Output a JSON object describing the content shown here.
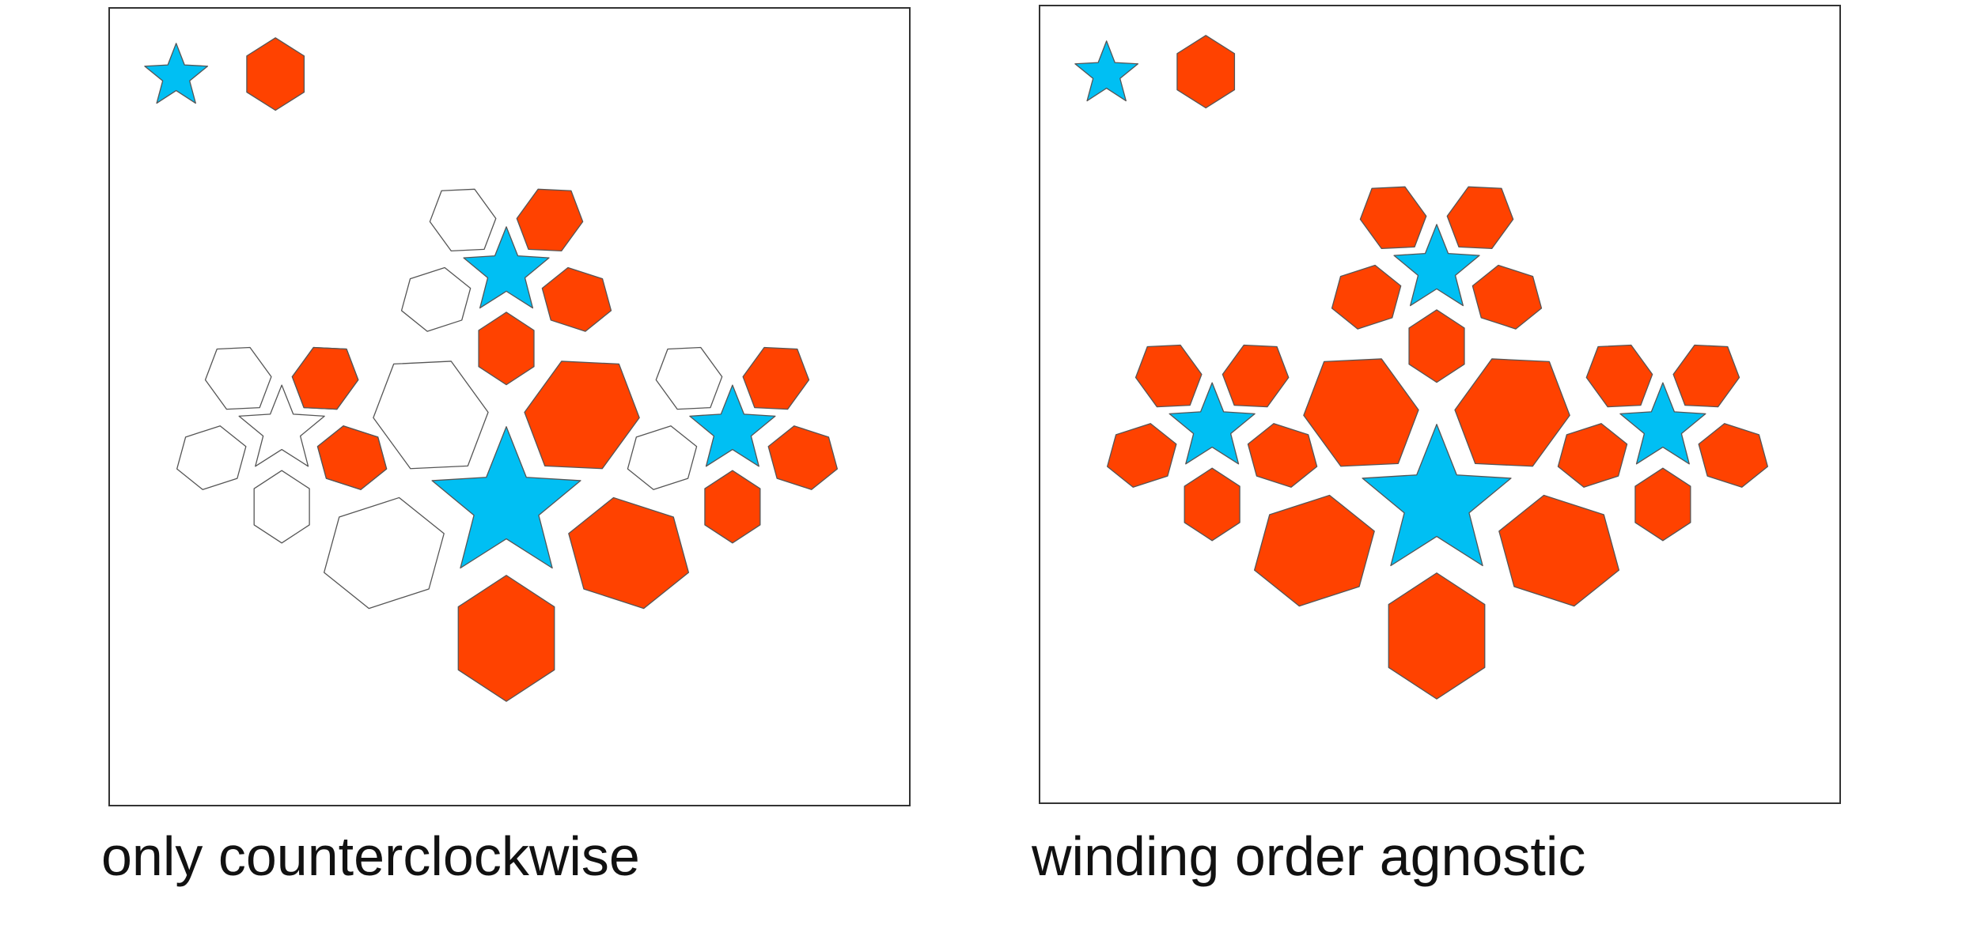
{
  "colors": {
    "star_fill": "#00bff3",
    "hexagon_fill": "#ff4200",
    "hollow_fill": "#ffffff",
    "outline": "#555555"
  },
  "legend": [
    {
      "shape": "star",
      "icon": "star-icon"
    },
    {
      "shape": "hexagon",
      "icon": "hexagon-icon"
    }
  ],
  "panels": [
    {
      "id": "left",
      "caption": "only counterclockwise",
      "flower_fill": [
        false,
        true,
        true
      ]
    },
    {
      "id": "right",
      "caption": "winding order agnostic",
      "flower_fill": [
        true,
        true,
        true
      ]
    }
  ],
  "clusters": [
    {
      "name": "flower-left",
      "petals": [
        "filled",
        "hollow-left",
        "hollow-left",
        "filled",
        "filled"
      ]
    },
    {
      "name": "flower-top",
      "petals": [
        "filled",
        "hollow-left",
        "hollow-left",
        "filled",
        "filled"
      ]
    },
    {
      "name": "flower-center",
      "petals": [
        "filled",
        "hollow-left",
        "hollow-left",
        "filled",
        "filled"
      ]
    },
    {
      "name": "flower-right",
      "petals": [
        "filled",
        "hollow-left",
        "hollow-left",
        "filled",
        "filled"
      ]
    }
  ]
}
